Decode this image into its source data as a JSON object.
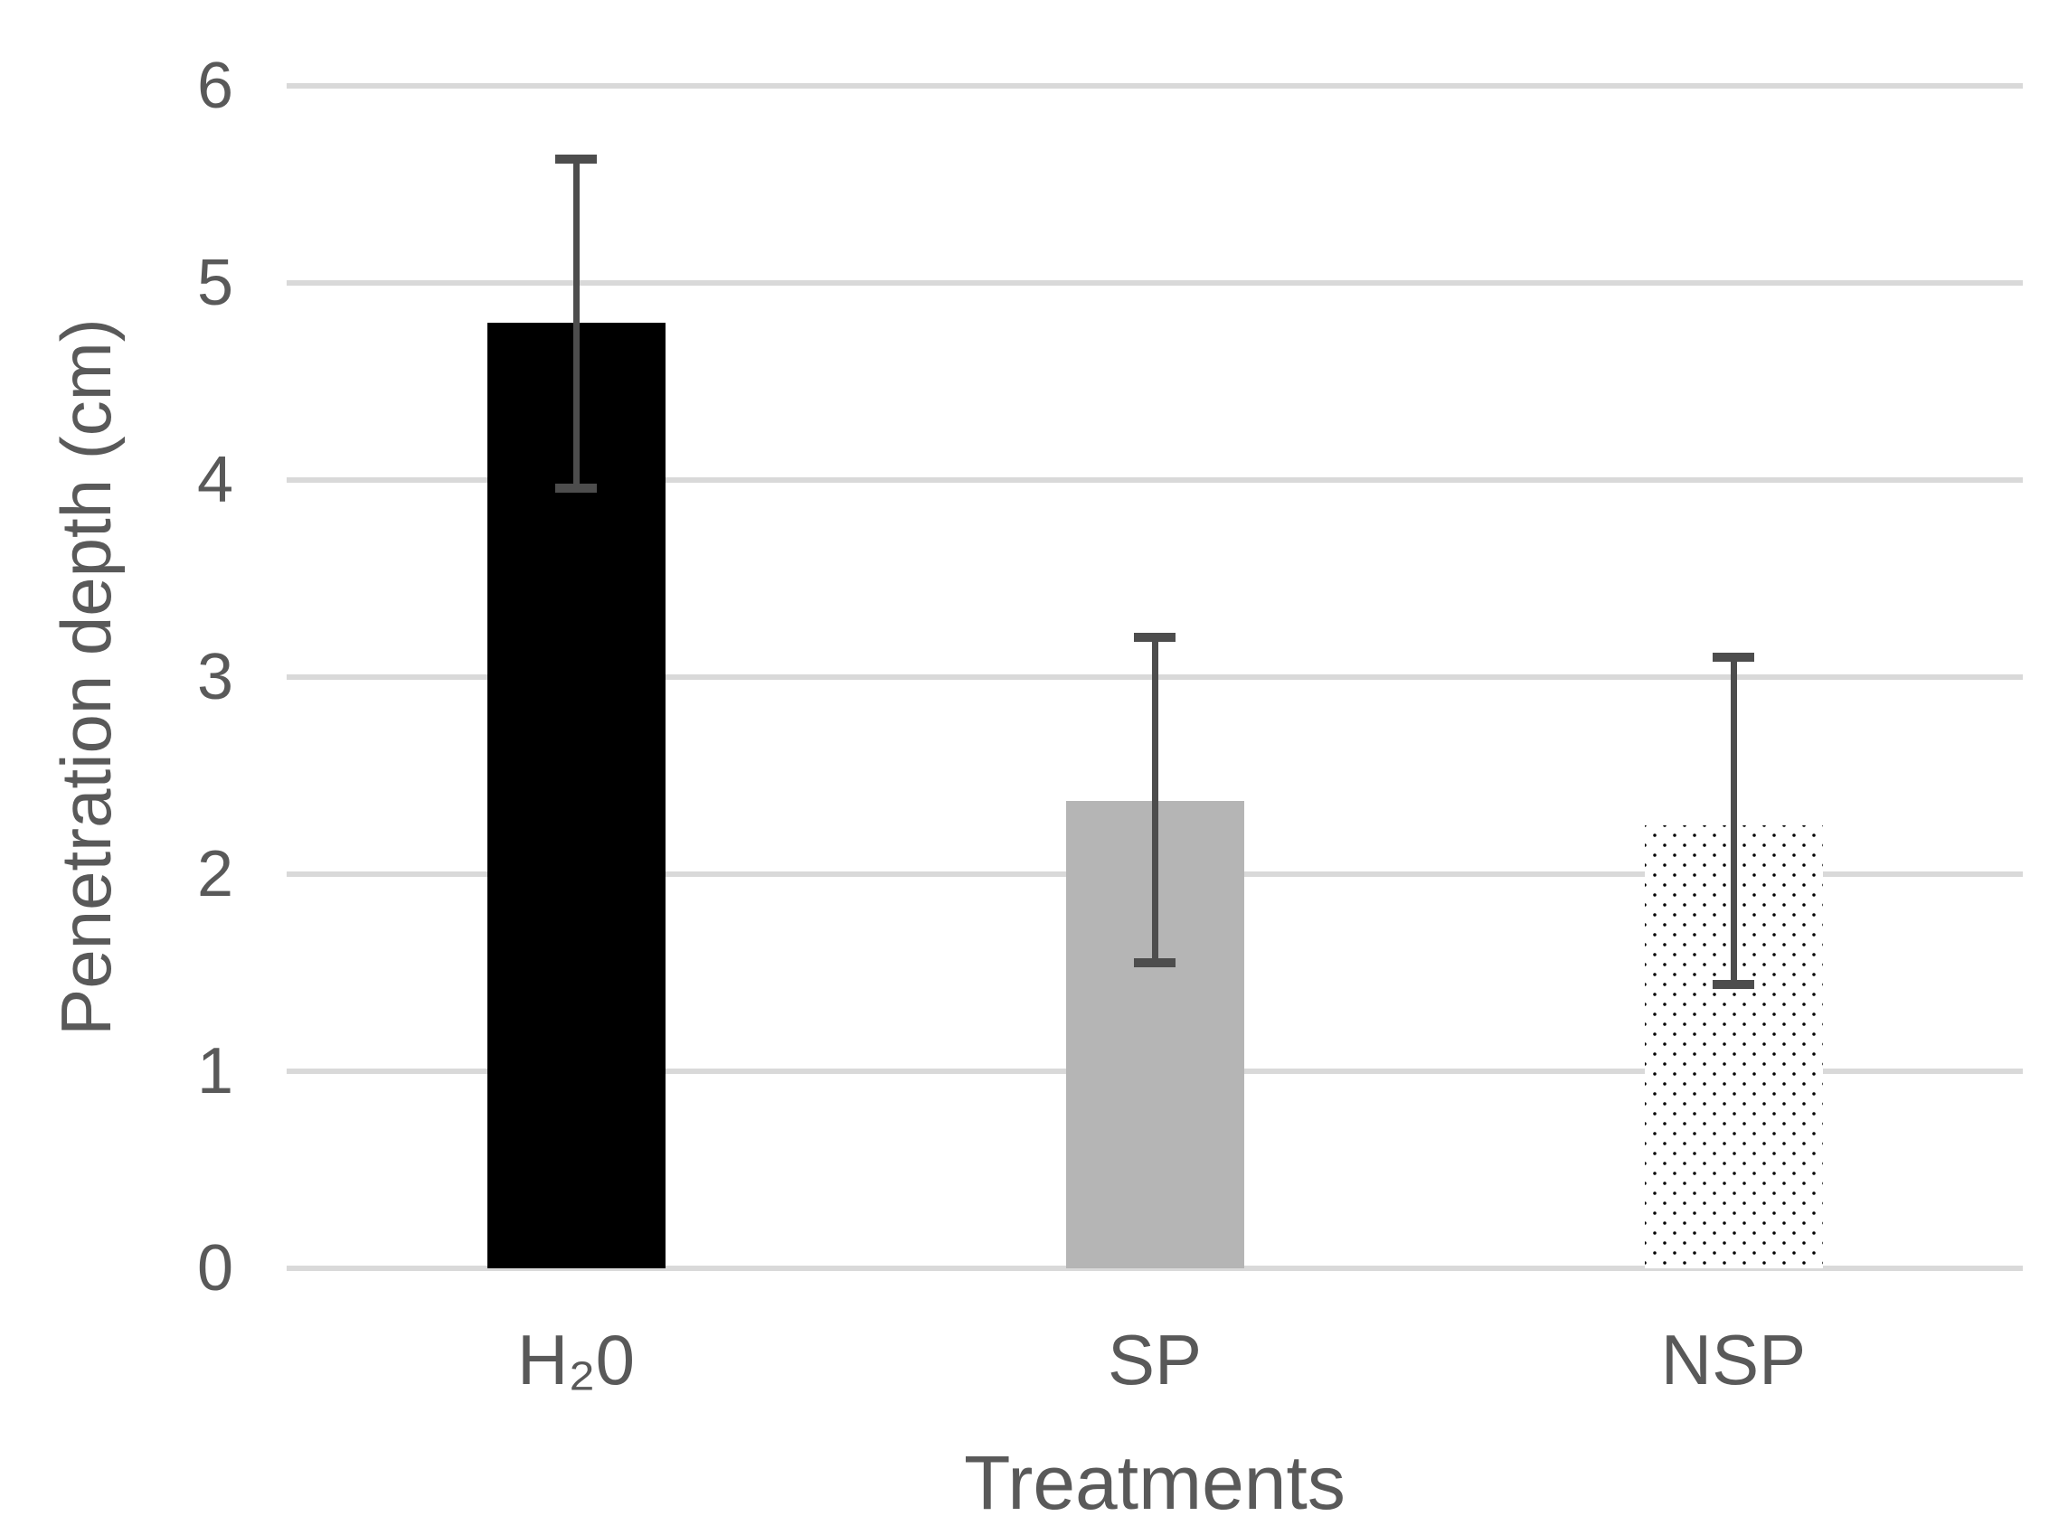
{
  "chart_data": {
    "type": "bar",
    "title": "",
    "xlabel": "Treatments",
    "ylabel": "Penetration depth (cm)",
    "categories": [
      "H₂0",
      "SP",
      "NSP"
    ],
    "values": [
      4.8,
      2.37,
      2.25
    ],
    "error_high": [
      5.63,
      3.2,
      3.1
    ],
    "error_low": [
      3.96,
      1.55,
      1.44
    ],
    "ylim": [
      0,
      6
    ],
    "yticks": [
      0,
      1,
      2,
      3,
      4,
      5,
      6
    ],
    "grid": "horizontal",
    "legend": "none",
    "bar_styles": [
      "solid-black",
      "solid-gray",
      "dotted-white"
    ],
    "colors": {
      "bar_black": "#000000",
      "bar_gray": "#b5b5b5",
      "dot": "#000000",
      "dot_background": "#ffffff",
      "gridline": "#d9d9d9",
      "error_bar": "#4d4d4d",
      "text": "#595959",
      "background": "#ffffff"
    }
  }
}
